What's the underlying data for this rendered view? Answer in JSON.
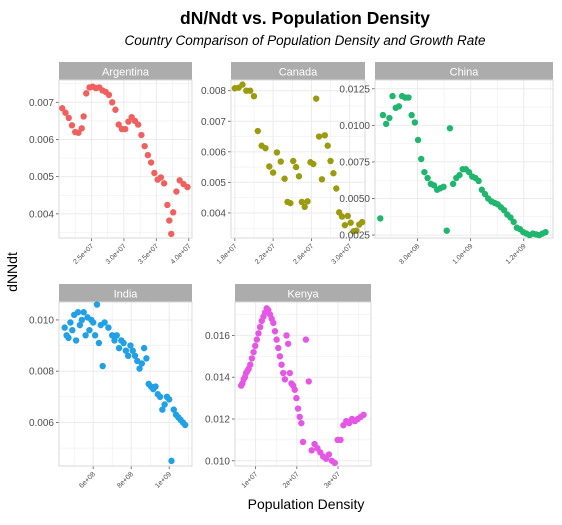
{
  "title": "dN/Ndt vs. Population Density",
  "subtitle": "Country Comparison of Population Density and Growth Rate",
  "xlabel": "Population Density",
  "ylabel": "dNNdt",
  "colors": {
    "Argentina": "#F0605E",
    "Canada": "#9C9A0E",
    "China": "#1FB66E",
    "India": "#21A0E6",
    "Kenya": "#E556E6",
    "strip_bg": "#ACACAC",
    "strip_text": "#FFFFFF",
    "grid": "#EBEBEB",
    "panel_border": "#D9D9D9"
  },
  "chart_data": [
    {
      "type": "scatter",
      "facet": "Argentina",
      "xlim": [
        20000000,
        40500000
      ],
      "ylim": [
        0.00335,
        0.0076
      ],
      "xticks": [
        {
          "v": 25000000,
          "label": "2.5e+07"
        },
        {
          "v": 30000000,
          "label": "3.0e+07"
        },
        {
          "v": 35000000,
          "label": "3.5e+07"
        },
        {
          "v": 40000000,
          "label": "4.0e+07"
        }
      ],
      "yticks": [
        {
          "v": 0.004,
          "label": "0.004"
        },
        {
          "v": 0.005,
          "label": "0.005"
        },
        {
          "v": 0.006,
          "label": "0.006"
        },
        {
          "v": 0.007,
          "label": "0.007"
        }
      ],
      "points": [
        [
          20500000,
          0.00684
        ],
        [
          21000000,
          0.00672
        ],
        [
          21500000,
          0.00658
        ],
        [
          22000000,
          0.00638
        ],
        [
          22500000,
          0.0062
        ],
        [
          23000000,
          0.00618
        ],
        [
          23500000,
          0.0063
        ],
        [
          23800000,
          0.00662
        ],
        [
          24200000,
          0.00724
        ],
        [
          24700000,
          0.0074
        ],
        [
          25200000,
          0.00742
        ],
        [
          25700000,
          0.00738
        ],
        [
          26200000,
          0.0074
        ],
        [
          26700000,
          0.00732
        ],
        [
          27200000,
          0.00728
        ],
        [
          27700000,
          0.0072
        ],
        [
          28200000,
          0.007
        ],
        [
          28700000,
          0.0068
        ],
        [
          29200000,
          0.0064
        ],
        [
          29700000,
          0.00628
        ],
        [
          30200000,
          0.00628
        ],
        [
          30700000,
          0.00648
        ],
        [
          31200000,
          0.0066
        ],
        [
          31700000,
          0.0065
        ],
        [
          32200000,
          0.0064
        ],
        [
          32700000,
          0.00612
        ],
        [
          33200000,
          0.00582
        ],
        [
          33700000,
          0.00558
        ],
        [
          34200000,
          0.00538
        ],
        [
          34700000,
          0.0051
        ],
        [
          35200000,
          0.00492
        ],
        [
          35700000,
          0.00498
        ],
        [
          36200000,
          0.00482
        ],
        [
          36700000,
          0.00424
        ],
        [
          37000000,
          0.00382
        ],
        [
          37300000,
          0.00346
        ],
        [
          37600000,
          0.00404
        ],
        [
          38100000,
          0.0046
        ],
        [
          38600000,
          0.0049
        ],
        [
          39200000,
          0.0048
        ],
        [
          39800000,
          0.00472
        ]
      ]
    },
    {
      "type": "scatter",
      "facet": "Canada",
      "xlim": [
        17600000,
        31600000
      ],
      "ylim": [
        0.00318,
        0.00835
      ],
      "xticks": [
        {
          "v": 18000000,
          "label": "1.8e+07"
        },
        {
          "v": 22000000,
          "label": "2.2e+07"
        },
        {
          "v": 26000000,
          "label": "2.6e+07"
        },
        {
          "v": 30000000,
          "label": "3.0e+07"
        }
      ],
      "yticks": [
        {
          "v": 0.004,
          "label": "0.004"
        },
        {
          "v": 0.005,
          "label": "0.005"
        },
        {
          "v": 0.006,
          "label": "0.006"
        },
        {
          "v": 0.007,
          "label": "0.007"
        },
        {
          "v": 0.008,
          "label": "0.008"
        }
      ],
      "points": [
        [
          18000000,
          0.00808
        ],
        [
          18400000,
          0.0081
        ],
        [
          18800000,
          0.0082
        ],
        [
          19200000,
          0.008
        ],
        [
          19600000,
          0.008
        ],
        [
          20000000,
          0.00782
        ],
        [
          20400000,
          0.00668
        ],
        [
          20800000,
          0.0062
        ],
        [
          21200000,
          0.00612
        ],
        [
          21600000,
          0.00552
        ],
        [
          22000000,
          0.00532
        ],
        [
          22400000,
          0.00598
        ],
        [
          22800000,
          0.00568
        ],
        [
          23200000,
          0.00512
        ],
        [
          23500000,
          0.00436
        ],
        [
          23800000,
          0.00432
        ],
        [
          24100000,
          0.0057
        ],
        [
          24400000,
          0.0055
        ],
        [
          24700000,
          0.0052
        ],
        [
          25000000,
          0.00436
        ],
        [
          25300000,
          0.0042
        ],
        [
          25600000,
          0.00438
        ],
        [
          25900000,
          0.00566
        ],
        [
          26200000,
          0.0056
        ],
        [
          26500000,
          0.00774
        ],
        [
          26800000,
          0.0065
        ],
        [
          27100000,
          0.0051
        ],
        [
          27400000,
          0.00654
        ],
        [
          27700000,
          0.0062
        ],
        [
          28000000,
          0.0057
        ],
        [
          28300000,
          0.0053
        ],
        [
          28600000,
          0.0048
        ],
        [
          28900000,
          0.00402
        ],
        [
          29200000,
          0.00388
        ],
        [
          29500000,
          0.0036
        ],
        [
          29800000,
          0.0039
        ],
        [
          30100000,
          0.00368
        ],
        [
          30400000,
          0.0034
        ],
        [
          30700000,
          0.00342
        ],
        [
          31000000,
          0.00362
        ],
        [
          31300000,
          0.0037
        ]
      ]
    },
    {
      "type": "scatter",
      "facet": "China",
      "xlim": [
        640000000,
        1310000000
      ],
      "ylim": [
        0.0023,
        0.0131
      ],
      "xticks": [
        {
          "v": 800000000,
          "label": "8.0e+08"
        },
        {
          "v": 1000000000,
          "label": "1.0e+09"
        },
        {
          "v": 1200000000,
          "label": "1.2e+09"
        }
      ],
      "yticks": [
        {
          "v": 0.0025,
          "label": "0.0025"
        },
        {
          "v": 0.005,
          "label": "0.0050"
        },
        {
          "v": 0.0075,
          "label": "0.0075"
        },
        {
          "v": 0.01,
          "label": "0.0100"
        },
        {
          "v": 0.0125,
          "label": "0.0125"
        }
      ],
      "points": [
        [
          660000000,
          0.00364
        ],
        [
          670000000,
          0.0107
        ],
        [
          682000000,
          0.0101
        ],
        [
          694000000,
          0.0105
        ],
        [
          706000000,
          0.012
        ],
        [
          718000000,
          0.0112
        ],
        [
          730000000,
          0.0113
        ],
        [
          742000000,
          0.012
        ],
        [
          754000000,
          0.0119
        ],
        [
          766000000,
          0.0119
        ],
        [
          778000000,
          0.0107
        ],
        [
          790000000,
          0.0102
        ],
        [
          802000000,
          0.009
        ],
        [
          814000000,
          0.0077
        ],
        [
          826000000,
          0.0068
        ],
        [
          838000000,
          0.0064
        ],
        [
          850000000,
          0.006
        ],
        [
          862000000,
          0.0059
        ],
        [
          874000000,
          0.0056
        ],
        [
          886000000,
          0.0057
        ],
        [
          898000000,
          0.0058
        ],
        [
          910000000,
          0.0028
        ],
        [
          922000000,
          0.0098
        ],
        [
          934000000,
          0.006
        ],
        [
          946000000,
          0.0064
        ],
        [
          958000000,
          0.0066
        ],
        [
          970000000,
          0.007
        ],
        [
          982000000,
          0.007
        ],
        [
          994000000,
          0.0068
        ],
        [
          1006000000,
          0.0065
        ],
        [
          1018000000,
          0.0064
        ],
        [
          1030000000,
          0.0062
        ],
        [
          1042000000,
          0.0056
        ],
        [
          1054000000,
          0.0053
        ],
        [
          1066000000,
          0.005
        ],
        [
          1078000000,
          0.0048
        ],
        [
          1090000000,
          0.0047
        ],
        [
          1102000000,
          0.0046
        ],
        [
          1114000000,
          0.0044
        ],
        [
          1126000000,
          0.0042
        ],
        [
          1138000000,
          0.0039
        ],
        [
          1150000000,
          0.0037
        ],
        [
          1162000000,
          0.0034
        ],
        [
          1174000000,
          0.003
        ],
        [
          1186000000,
          0.0029
        ],
        [
          1198000000,
          0.0027
        ],
        [
          1210000000,
          0.0026
        ],
        [
          1222000000,
          0.0025
        ],
        [
          1234000000,
          0.0026
        ],
        [
          1246000000,
          0.00255
        ],
        [
          1258000000,
          0.0025
        ],
        [
          1270000000,
          0.0026
        ],
        [
          1282000000,
          0.0027
        ]
      ]
    },
    {
      "type": "scatter",
      "facet": "India",
      "xlim": [
        420000000,
        1120000000
      ],
      "ylim": [
        0.0043,
        0.0107
      ],
      "xticks": [
        {
          "v": 600000000,
          "label": "6e+08"
        },
        {
          "v": 800000000,
          "label": "8e+08"
        },
        {
          "v": 1000000000,
          "label": "1e+09"
        }
      ],
      "yticks": [
        {
          "v": 0.006,
          "label": "0.006"
        },
        {
          "v": 0.008,
          "label": "0.008"
        },
        {
          "v": 0.01,
          "label": "0.010"
        }
      ],
      "points": [
        [
          450000000,
          0.0097
        ],
        [
          460000000,
          0.0094
        ],
        [
          470000000,
          0.0093
        ],
        [
          480000000,
          0.0099
        ],
        [
          490000000,
          0.0096
        ],
        [
          500000000,
          0.0102
        ],
        [
          510000000,
          0.0092
        ],
        [
          520000000,
          0.0103
        ],
        [
          530000000,
          0.0098
        ],
        [
          540000000,
          0.01
        ],
        [
          550000000,
          0.0103
        ],
        [
          560000000,
          0.0094
        ],
        [
          570000000,
          0.0101
        ],
        [
          580000000,
          0.0096
        ],
        [
          590000000,
          0.01
        ],
        [
          600000000,
          0.0099
        ],
        [
          610000000,
          0.0094
        ],
        [
          620000000,
          0.0106
        ],
        [
          630000000,
          0.0091
        ],
        [
          640000000,
          0.0098
        ],
        [
          650000000,
          0.0082
        ],
        [
          660000000,
          0.0099
        ],
        [
          680000000,
          0.0097
        ],
        [
          700000000,
          0.0094
        ],
        [
          712000000,
          0.0092
        ],
        [
          724000000,
          0.0094
        ],
        [
          736000000,
          0.0089
        ],
        [
          748000000,
          0.0092
        ],
        [
          760000000,
          0.0091
        ],
        [
          772000000,
          0.0088
        ],
        [
          784000000,
          0.0086
        ],
        [
          796000000,
          0.009
        ],
        [
          808000000,
          0.0088
        ],
        [
          820000000,
          0.0086
        ],
        [
          832000000,
          0.0084
        ],
        [
          844000000,
          0.0081
        ],
        [
          856000000,
          0.0083
        ],
        [
          868000000,
          0.0089
        ],
        [
          880000000,
          0.0085
        ],
        [
          892000000,
          0.0075
        ],
        [
          904000000,
          0.0074
        ],
        [
          916000000,
          0.0073
        ],
        [
          928000000,
          0.0074
        ],
        [
          940000000,
          0.0071
        ],
        [
          952000000,
          0.007
        ],
        [
          964000000,
          0.0065
        ],
        [
          976000000,
          0.0067
        ],
        [
          988000000,
          0.007
        ],
        [
          1000000000,
          0.0069
        ],
        [
          1012000000,
          0.0045
        ],
        [
          1024000000,
          0.0065
        ],
        [
          1036000000,
          0.0063
        ],
        [
          1048000000,
          0.0062
        ],
        [
          1060000000,
          0.0061
        ],
        [
          1072000000,
          0.006
        ],
        [
          1084000000,
          0.0059
        ]
      ]
    },
    {
      "type": "scatter",
      "facet": "Kenya",
      "xlim": [
        5000000,
        38000000
      ],
      "ylim": [
        0.00975,
        0.0176
      ],
      "xticks": [
        {
          "v": 10000000,
          "label": "1e+07"
        },
        {
          "v": 20000000,
          "label": "2e+07"
        },
        {
          "v": 30000000,
          "label": "3e+07"
        }
      ],
      "yticks": [
        {
          "v": 0.01,
          "label": "0.010"
        },
        {
          "v": 0.012,
          "label": "0.012"
        },
        {
          "v": 0.014,
          "label": "0.014"
        },
        {
          "v": 0.016,
          "label": "0.016"
        }
      ],
      "points": [
        [
          6500000,
          0.0136
        ],
        [
          6800000,
          0.0137
        ],
        [
          7100000,
          0.0139
        ],
        [
          7400000,
          0.014
        ],
        [
          7700000,
          0.0142
        ],
        [
          8000000,
          0.0143
        ],
        [
          8300000,
          0.0144
        ],
        [
          8700000,
          0.0146
        ],
        [
          9100000,
          0.0149
        ],
        [
          9500000,
          0.0152
        ],
        [
          9900000,
          0.0155
        ],
        [
          10300000,
          0.0158
        ],
        [
          10700000,
          0.0161
        ],
        [
          11100000,
          0.0164
        ],
        [
          11500000,
          0.0167
        ],
        [
          11900000,
          0.0169
        ],
        [
          12300000,
          0.0171
        ],
        [
          12700000,
          0.0173
        ],
        [
          13100000,
          0.0172
        ],
        [
          13500000,
          0.017
        ],
        [
          13900000,
          0.0168
        ],
        [
          14300000,
          0.0166
        ],
        [
          14700000,
          0.0162
        ],
        [
          15100000,
          0.0158
        ],
        [
          15500000,
          0.0154
        ],
        [
          15900000,
          0.015
        ],
        [
          16300000,
          0.0146
        ],
        [
          16700000,
          0.0142
        ],
        [
          17100000,
          0.0139
        ],
        [
          17500000,
          0.016
        ],
        [
          17900000,
          0.0156
        ],
        [
          18300000,
          0.0142
        ],
        [
          18700000,
          0.0137
        ],
        [
          19100000,
          0.0136
        ],
        [
          19500000,
          0.0134
        ],
        [
          19900000,
          0.013
        ],
        [
          20300000,
          0.0125
        ],
        [
          20700000,
          0.0121
        ],
        [
          21100000,
          0.0118
        ],
        [
          21500000,
          0.0109
        ],
        [
          22200000,
          0.0158
        ],
        [
          22900000,
          0.0138
        ],
        [
          23600000,
          0.0105
        ],
        [
          24300000,
          0.0108
        ],
        [
          25000000,
          0.0106
        ],
        [
          25700000,
          0.0104
        ],
        [
          26400000,
          0.0102
        ],
        [
          27100000,
          0.0101
        ],
        [
          27800000,
          0.0103
        ],
        [
          28500000,
          0.01
        ],
        [
          29200000,
          0.0099
        ],
        [
          29900000,
          0.011
        ],
        [
          30600000,
          0.011
        ],
        [
          31300000,
          0.0117
        ],
        [
          32000000,
          0.0119
        ],
        [
          32700000,
          0.0118
        ],
        [
          33400000,
          0.012
        ],
        [
          34100000,
          0.0119
        ],
        [
          34800000,
          0.012
        ],
        [
          35500000,
          0.0121
        ],
        [
          36200000,
          0.0122
        ]
      ]
    }
  ]
}
